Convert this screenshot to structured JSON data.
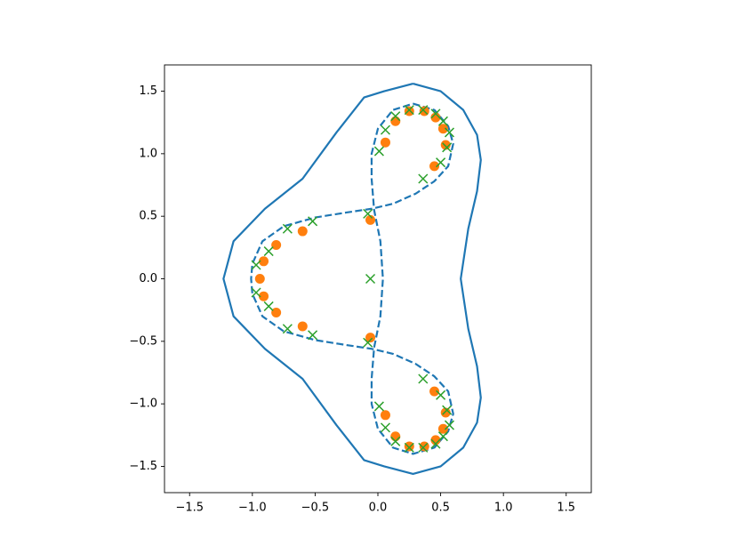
{
  "chart_data": {
    "type": "line",
    "xlim": [
      -1.7,
      1.7
    ],
    "ylim": [
      -1.71,
      1.71
    ],
    "xticks": [
      {
        "value": -1.5,
        "label": "−1.5"
      },
      {
        "value": -1,
        "label": "−1.0"
      },
      {
        "value": -0.5,
        "label": "−0.5"
      },
      {
        "value": 0,
        "label": "0.0"
      },
      0.5,
      {
        "value": 1,
        "label": "1.0"
      },
      1.5
    ],
    "yticks": [
      {
        "value": -1.5,
        "label": "−1.5"
      },
      {
        "value": -1,
        "label": "−1.0"
      },
      {
        "value": -0.5,
        "label": "−0.5"
      },
      {
        "value": 0,
        "label": "0.0"
      },
      0.5,
      {
        "value": 1,
        "label": "1.0"
      },
      1.5
    ],
    "series": [
      {
        "color": "#1f77b4",
        "linestyle": "solid",
        "x": [
          0.28,
          0.5,
          0.68,
          0.79,
          0.82,
          0.79,
          0.72,
          0.66,
          0.72,
          0.79,
          0.82,
          0.79,
          0.68,
          0.5,
          0.28,
          0.05,
          -0.11,
          -0.33,
          -0.6,
          -0.9,
          -1.15,
          -1.23,
          -1.15,
          -0.9,
          -0.6,
          -0.33,
          -0.11,
          0.05,
          0.28
        ],
        "y": [
          1.56,
          1.5,
          1.35,
          1.15,
          0.95,
          0.7,
          0.4,
          0,
          -0.4,
          -0.7,
          -0.95,
          -1.15,
          -1.35,
          -1.5,
          -1.56,
          -1.5,
          -1.45,
          -1.17,
          -0.8,
          -0.56,
          -0.3,
          0,
          0.3,
          0.56,
          0.8,
          1.17,
          1.45,
          1.5,
          1.56
        ]
      },
      {
        "color": "#1f77b4",
        "linestyle": "dashed",
        "x": [
          0.28,
          0.45,
          0.56,
          0.6,
          0.56,
          0.45,
          0.3,
          0.12,
          -0.05,
          -0.25,
          -0.5,
          -0.75,
          -0.92,
          -1.0,
          -1.01,
          -1.0,
          -0.92,
          -0.75,
          -0.5,
          -0.25,
          -0.05,
          0.12,
          0.3,
          0.45,
          0.56,
          0.6,
          0.56,
          0.45,
          0.28,
          0.12,
          0.0,
          -0.05,
          -0.05,
          -0.03,
          0.02,
          0.04,
          0.02,
          -0.03,
          -0.05,
          -0.05,
          0.0,
          0.12,
          0.28
        ],
        "y": [
          1.4,
          1.35,
          1.22,
          1.08,
          0.9,
          0.78,
          0.68,
          0.6,
          0.56,
          0.53,
          0.49,
          0.42,
          0.3,
          0.12,
          0,
          -0.12,
          -0.3,
          -0.42,
          -0.49,
          -0.53,
          -0.56,
          -0.6,
          -0.68,
          -0.78,
          -0.9,
          -1.08,
          -1.22,
          -1.35,
          -1.4,
          -1.35,
          -1.2,
          -1.0,
          -0.8,
          -0.55,
          -0.3,
          0,
          0.3,
          0.55,
          0.8,
          1.0,
          1.2,
          1.35,
          1.4
        ]
      },
      {
        "color": "#ff7f0e",
        "marker": "o",
        "x": [
          -0.06,
          -0.06,
          -0.6,
          -0.6,
          -0.81,
          -0.81,
          -0.91,
          -0.91,
          -0.94,
          0.06,
          0.14,
          0.25,
          0.37,
          0.46,
          0.52,
          0.54,
          0.45,
          0.06,
          0.14,
          0.25,
          0.37,
          0.46,
          0.52,
          0.54,
          0.45
        ],
        "y": [
          0.47,
          -0.47,
          0.38,
          -0.38,
          0.27,
          -0.27,
          0.14,
          -0.14,
          0,
          1.09,
          1.26,
          1.34,
          1.34,
          1.29,
          1.2,
          1.07,
          0.9,
          -1.09,
          -1.26,
          -1.34,
          -1.34,
          -1.29,
          -1.2,
          -1.07,
          -0.9
        ]
      },
      {
        "color": "#2ca02c",
        "marker": "x",
        "x": [
          -0.06,
          -0.08,
          -0.08,
          -0.52,
          -0.52,
          -0.72,
          -0.72,
          -0.87,
          -0.87,
          -0.97,
          -0.97,
          0.01,
          0.06,
          0.14,
          0.25,
          0.36,
          0.46,
          0.52,
          0.57,
          0.55,
          0.5,
          0.36,
          0.01,
          0.06,
          0.14,
          0.25,
          0.36,
          0.46,
          0.52,
          0.57,
          0.55,
          0.5,
          0.36
        ],
        "y": [
          0,
          0.52,
          -0.51,
          0.46,
          -0.45,
          0.4,
          -0.4,
          0.22,
          -0.22,
          0.11,
          -0.11,
          1.02,
          1.19,
          1.3,
          1.35,
          1.35,
          1.32,
          1.26,
          1.17,
          1.05,
          0.93,
          0.8,
          -1.02,
          -1.19,
          -1.3,
          -1.35,
          -1.35,
          -1.32,
          -1.26,
          -1.17,
          -1.05,
          -0.93,
          -0.8
        ]
      }
    ]
  }
}
